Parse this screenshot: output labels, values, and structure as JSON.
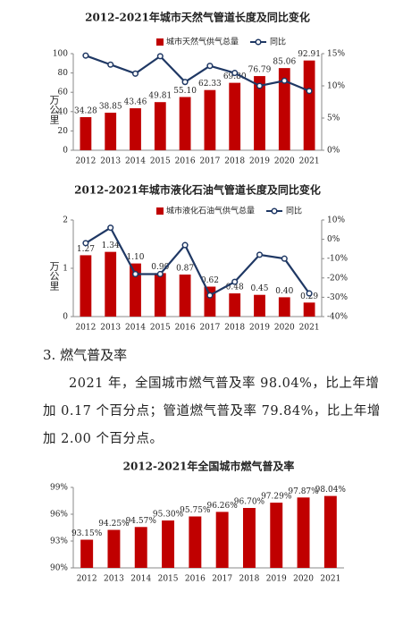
{
  "chart_data": [
    {
      "type": "bar_line",
      "title": "2012-2021年城市天然气管道长度及同比变化",
      "y_label": "万公里",
      "categories": [
        "2012",
        "2013",
        "2014",
        "2015",
        "2016",
        "2017",
        "2018",
        "2019",
        "2020",
        "2021"
      ],
      "series": [
        {
          "name": "城市天然气供气总量",
          "color": "#c00000",
          "values": [
            34.28,
            38.85,
            43.46,
            49.81,
            55.1,
            62.33,
            69.8,
            76.79,
            85.06,
            92.91
          ],
          "value_labels": [
            "34.28",
            "38.85",
            "43.46",
            "49.81",
            "55.10",
            "62.33",
            "69.80",
            "76.79",
            "85.06",
            "92.91"
          ]
        },
        {
          "name": "同比",
          "color": "#1f3864",
          "axis": "y2",
          "values": [
            14.7,
            13.3,
            11.9,
            14.6,
            10.6,
            13.1,
            12.0,
            10.0,
            10.8,
            9.2
          ]
        }
      ],
      "ylim": [
        0,
        100
      ],
      "yticks": [
        0,
        20,
        40,
        60,
        80,
        100
      ],
      "y2lim": [
        0,
        15
      ],
      "y2ticks": [
        {
          "value": 0,
          "label": "0%"
        },
        {
          "value": 5,
          "label": "5%"
        },
        {
          "value": 10,
          "label": "10%"
        },
        {
          "value": 15,
          "label": "15%"
        }
      ],
      "legend": "top-right"
    },
    {
      "type": "bar_line",
      "title": "2012-2021年城市液化石油气管道长度及同比变化",
      "y_label": "万公里",
      "categories": [
        "2012",
        "2013",
        "2014",
        "2015",
        "2016",
        "2017",
        "2018",
        "2019",
        "2020",
        "2021"
      ],
      "series": [
        {
          "name": "城市液化石油气供气总量",
          "color": "#c00000",
          "values": [
            1.27,
            1.34,
            1.1,
            0.9,
            0.87,
            0.62,
            0.48,
            0.45,
            0.4,
            0.29
          ],
          "value_labels": [
            "1.27",
            "1.34",
            "1.10",
            "0.90",
            "0.87",
            "0.62",
            "0.48",
            "0.45",
            "0.40",
            "0.29"
          ]
        },
        {
          "name": "同比",
          "color": "#1f3864",
          "axis": "y2",
          "values": [
            -2,
            6,
            -18,
            -18,
            -3,
            -29,
            -22,
            -8,
            -10,
            -28
          ]
        }
      ],
      "ylim": [
        0,
        2
      ],
      "yticks": [
        0,
        1,
        2
      ],
      "y2lim": [
        -40,
        10
      ],
      "y2ticks": [
        {
          "value": -40,
          "label": "-40%"
        },
        {
          "value": -30,
          "label": "-30%"
        },
        {
          "value": -20,
          "label": "-20%"
        },
        {
          "value": -10,
          "label": "-10%"
        },
        {
          "value": 0,
          "label": "0%"
        },
        {
          "value": 10,
          "label": "10%"
        }
      ],
      "legend": "top-right"
    },
    {
      "type": "bar",
      "title": "2012-2021年全国城市燃气普及率",
      "categories": [
        "2012",
        "2013",
        "2014",
        "2015",
        "2016",
        "2017",
        "2018",
        "2019",
        "2020",
        "2021"
      ],
      "values": [
        93.15,
        94.25,
        94.57,
        95.3,
        95.75,
        96.26,
        96.7,
        97.29,
        97.87,
        98.04
      ],
      "value_labels": [
        "93.15%",
        "94.25%",
        "94.57%",
        "95.30%",
        "95.75%",
        "96.26%",
        "96.70%",
        "97.29%",
        "97.87%",
        "98.04%"
      ],
      "color": "#c00000",
      "ylim": [
        90,
        99
      ],
      "yticks": [
        {
          "value": 90,
          "label": "90%"
        },
        {
          "value": 93,
          "label": "93%"
        },
        {
          "value": 96,
          "label": "96%"
        },
        {
          "value": 99,
          "label": "99%"
        }
      ]
    }
  ],
  "section": {
    "heading": "3. 燃气普及率",
    "paragraph": "2021 年，全国城市燃气普及率 98.04%，比上年增加 0.17 个百分点；管道燃气普及率 79.84%，比上年增加 2.00 个百分点。"
  }
}
